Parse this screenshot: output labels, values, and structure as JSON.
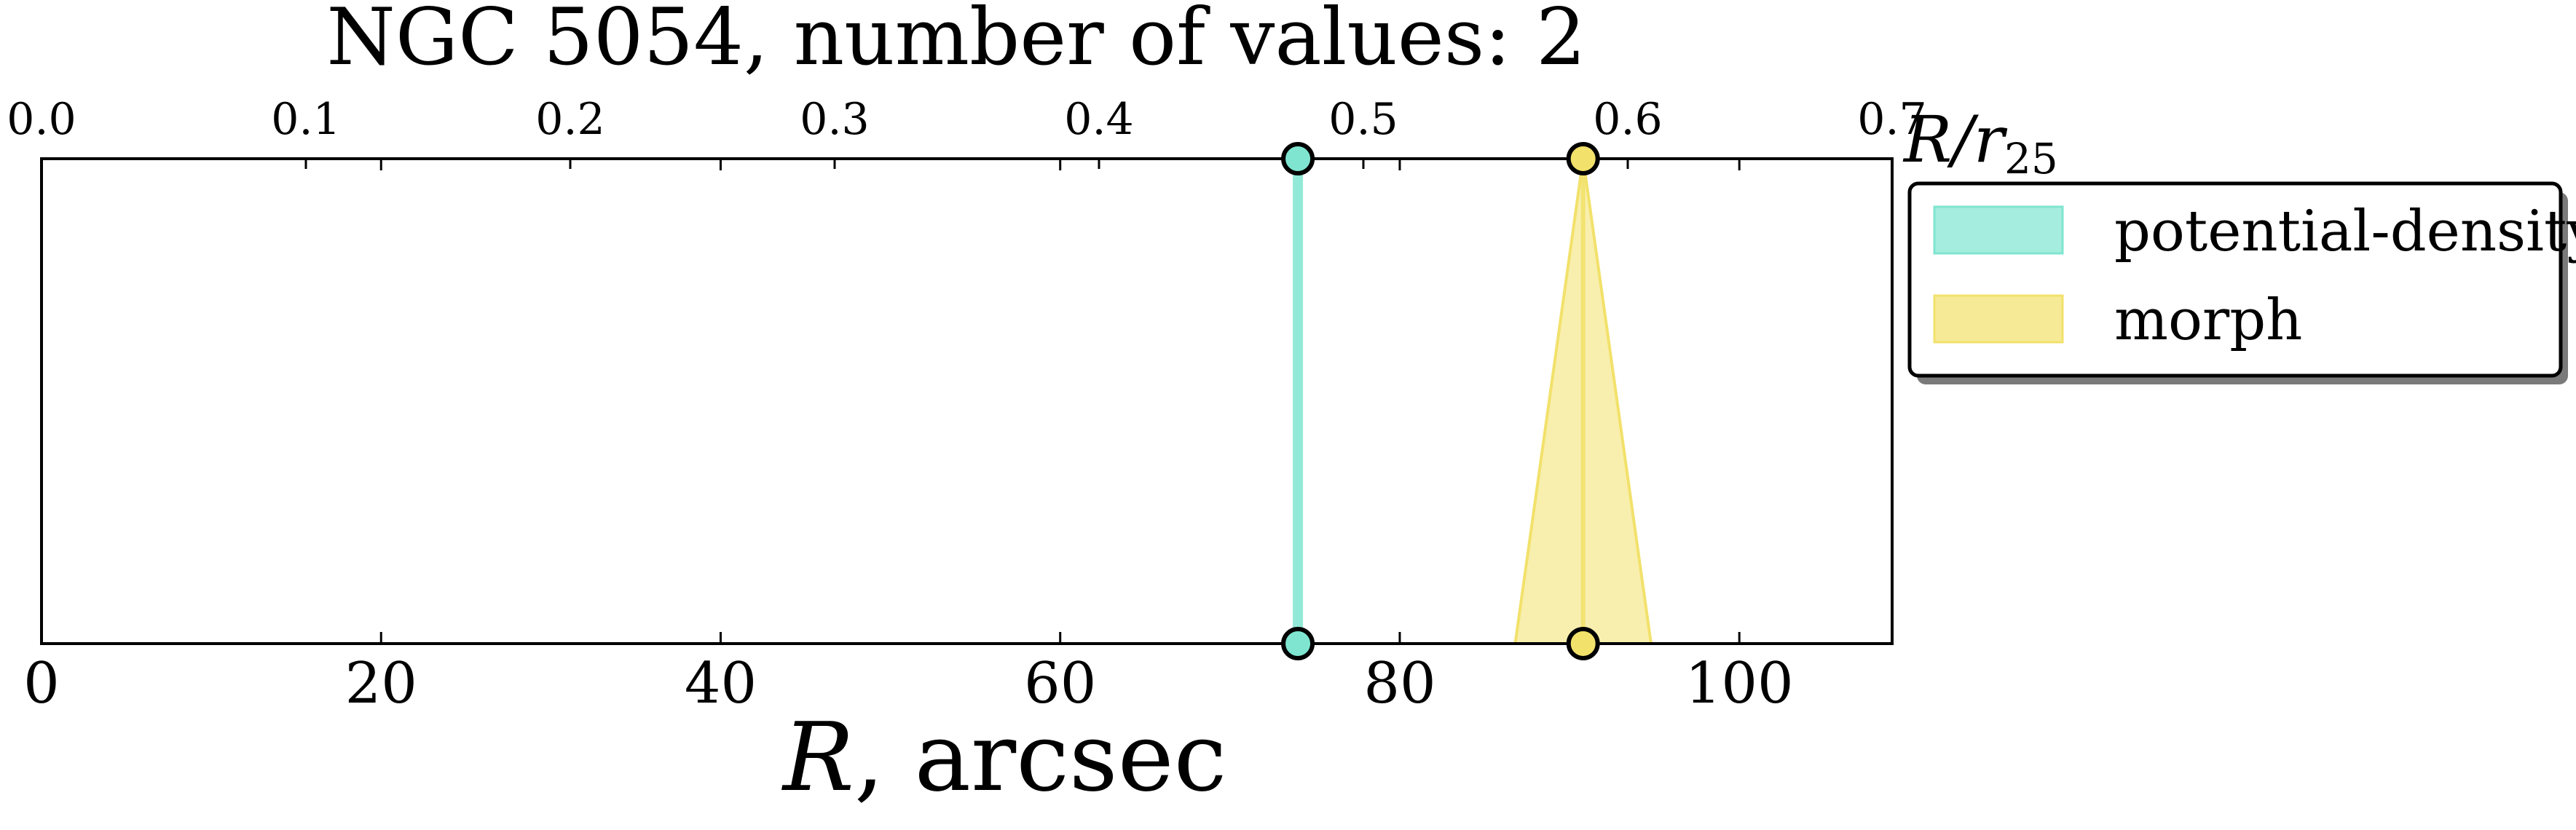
{
  "chart_data": {
    "type": "range-markers",
    "title": "NGC 5054, number of values: 2",
    "xlabel": "R, arcsec",
    "xlim": [
      0,
      109
    ],
    "x_ticks": [
      0,
      20,
      40,
      60,
      80,
      100
    ],
    "x_tick_labels": [
      "0",
      "20",
      "40",
      "60",
      "80",
      "100"
    ],
    "top_axis": {
      "label": "R/r25",
      "label_main": "R/r",
      "label_sub": "25",
      "lim": [
        0,
        0.7
      ],
      "ticks": [
        0.0,
        0.1,
        0.2,
        0.3,
        0.4,
        0.5,
        0.6,
        0.7
      ],
      "tick_labels": [
        "0.0",
        "0.1",
        "0.2",
        "0.3",
        "0.4",
        "0.5",
        "0.6",
        "0.7"
      ]
    },
    "series": [
      {
        "name": "potential-density",
        "color": "#7fe5d0",
        "top_x": 74,
        "bottom_center": 74,
        "bottom_err": 0
      },
      {
        "name": "morph",
        "color": "#f2e16b",
        "top_x": 90.8,
        "bottom_center": 90.8,
        "bottom_err": 4
      }
    ],
    "legend": {
      "placement": "right, outside plot, top",
      "entries": [
        "potential-density",
        "morph"
      ]
    }
  }
}
